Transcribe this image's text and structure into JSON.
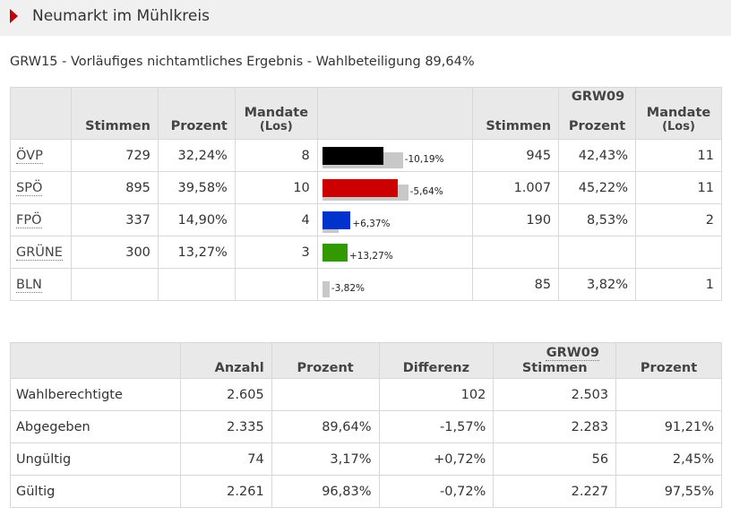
{
  "header": {
    "title": "Neumarkt im Mühlkreis"
  },
  "subtitle": "GRW15 - Vorläufiges nichtamtliches Ergebnis - Wahlbeteiligung 89,64%",
  "results": {
    "compare_label": "GRW09",
    "columns": {
      "stimmen": "Stimmen",
      "prozent": "Prozent",
      "mandate": "Mandate",
      "los": "(Los)"
    },
    "rows": [
      {
        "party": "ÖVP",
        "stimmen": "729",
        "prozent": "32,24%",
        "mandate": "8",
        "pct_now": 32.24,
        "pct_prev": 42.43,
        "diff": "-10,19%",
        "color": "#000000",
        "prev_stimmen": "945",
        "prev_prozent": "42,43%",
        "prev_mandate": "11"
      },
      {
        "party": "SPÖ",
        "stimmen": "895",
        "prozent": "39,58%",
        "mandate": "10",
        "pct_now": 39.58,
        "pct_prev": 45.22,
        "diff": "-5,64%",
        "color": "#cc0000",
        "prev_stimmen": "1.007",
        "prev_prozent": "45,22%",
        "prev_mandate": "11"
      },
      {
        "party": "FPÖ",
        "stimmen": "337",
        "prozent": "14,90%",
        "mandate": "4",
        "pct_now": 14.9,
        "pct_prev": 8.53,
        "diff": "+6,37%",
        "color": "#0033cc",
        "prev_stimmen": "190",
        "prev_prozent": "8,53%",
        "prev_mandate": "2"
      },
      {
        "party": "GRÜNE",
        "stimmen": "300",
        "prozent": "13,27%",
        "mandate": "3",
        "pct_now": 13.27,
        "pct_prev": 0,
        "diff": "+13,27%",
        "color": "#339900",
        "prev_stimmen": "",
        "prev_prozent": "",
        "prev_mandate": ""
      },
      {
        "party": "BLN",
        "stimmen": "",
        "prozent": "",
        "mandate": "",
        "pct_now": 0,
        "pct_prev": 3.82,
        "diff": "-3,82%",
        "color": "#999999",
        "prev_stimmen": "85",
        "prev_prozent": "3,82%",
        "prev_mandate": "1"
      }
    ]
  },
  "stats": {
    "compare_label": "GRW09",
    "columns": {
      "anzahl": "Anzahl",
      "prozent": "Prozent",
      "differenz": "Differenz",
      "stimmen": "Stimmen",
      "prev_prozent": "Prozent"
    },
    "rows": [
      {
        "label": "Wahlberechtigte",
        "anzahl": "2.605",
        "prozent": "",
        "differenz": "102",
        "stimmen": "2.503",
        "prev_prozent": ""
      },
      {
        "label": "Abgegeben",
        "anzahl": "2.335",
        "prozent": "89,64%",
        "differenz": "-1,57%",
        "stimmen": "2.283",
        "prev_prozent": "91,21%"
      },
      {
        "label": "Ungültig",
        "anzahl": "74",
        "prozent": "3,17%",
        "differenz": "+0,72%",
        "stimmen": "56",
        "prev_prozent": "2,45%"
      },
      {
        "label": "Gültig",
        "anzahl": "2.261",
        "prozent": "96,83%",
        "differenz": "-0,72%",
        "stimmen": "2.227",
        "prev_prozent": "97,55%"
      }
    ]
  }
}
